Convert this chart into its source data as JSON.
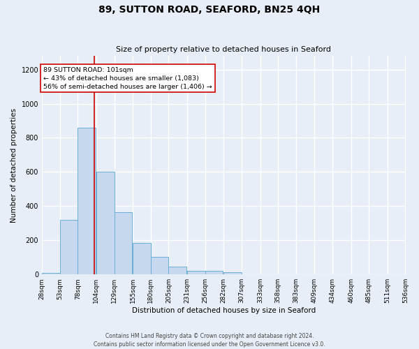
{
  "title": "89, SUTTON ROAD, SEAFORD, BN25 4QH",
  "subtitle": "Size of property relative to detached houses in Seaford",
  "xlabel": "Distribution of detached houses by size in Seaford",
  "ylabel": "Number of detached properties",
  "bin_edges": [
    28,
    53,
    78,
    104,
    129,
    155,
    180,
    205,
    231,
    256,
    282,
    307,
    333,
    358,
    383,
    409,
    434,
    460,
    485,
    511,
    536
  ],
  "bar_heights": [
    10,
    320,
    860,
    600,
    365,
    185,
    105,
    45,
    20,
    20,
    12,
    0,
    0,
    0,
    0,
    0,
    0,
    0,
    0,
    0
  ],
  "bar_color": "#c5d8ee",
  "bar_edge_color": "#6aaed6",
  "vline_x": 101,
  "vline_color": "#cc0000",
  "annotation_line1": "89 SUTTON ROAD: 101sqm",
  "annotation_line2": "← 43% of detached houses are smaller (1,083)",
  "annotation_line3": "56% of semi-detached houses are larger (1,406) →",
  "box_edge_color": "#cc0000",
  "ylim": [
    0,
    1280
  ],
  "yticks": [
    0,
    200,
    400,
    600,
    800,
    1000,
    1200
  ],
  "footer_line1": "Contains HM Land Registry data © Crown copyright and database right 2024.",
  "footer_line2": "Contains public sector information licensed under the Open Government Licence v3.0.",
  "bg_color": "#e8eef7",
  "grid_color": "#ffffff",
  "tick_labels": [
    "28sqm",
    "53sqm",
    "78sqm",
    "104sqm",
    "129sqm",
    "155sqm",
    "180sqm",
    "205sqm",
    "231sqm",
    "256sqm",
    "282sqm",
    "307sqm",
    "333sqm",
    "358sqm",
    "383sqm",
    "409sqm",
    "434sqm",
    "460sqm",
    "485sqm",
    "511sqm",
    "536sqm"
  ],
  "title_fontsize": 10,
  "subtitle_fontsize": 8,
  "axis_fontsize": 7.5,
  "tick_fontsize": 6.5,
  "footer_fontsize": 5.5
}
